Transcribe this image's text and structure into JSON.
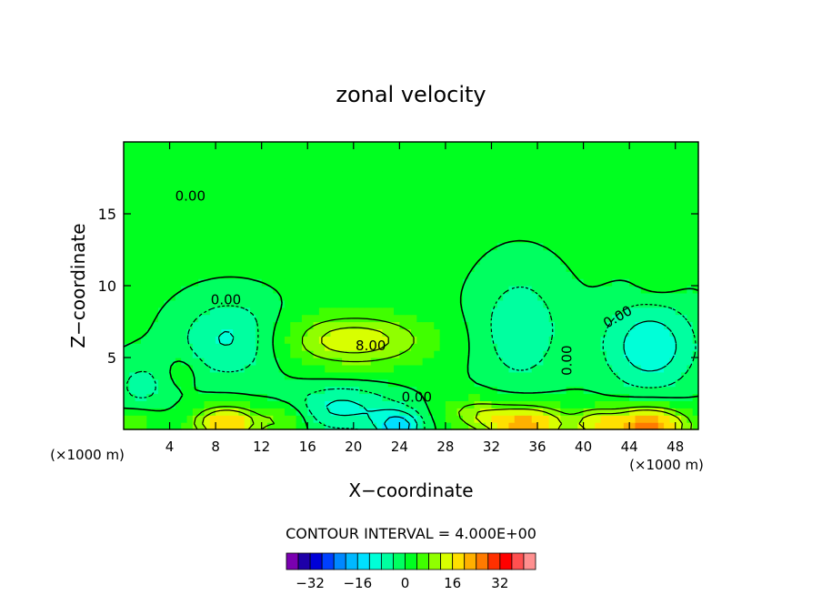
{
  "chart_data": {
    "type": "heatmap",
    "title": "zonal velocity",
    "xlabel": "X−coordinate",
    "ylabel": "Z−coordinate",
    "x_unit_left": "(×1000 m)",
    "x_unit_right": "(×1000 m)",
    "xlim": [
      0,
      50
    ],
    "ylim": [
      0,
      20
    ],
    "x_ticks": [
      4,
      8,
      12,
      16,
      20,
      24,
      28,
      32,
      36,
      40,
      44,
      48
    ],
    "x_tick_labels": [
      "4",
      "8",
      "12",
      "16",
      "20",
      "24",
      "28",
      "32",
      "36",
      "40",
      "44",
      "48"
    ],
    "y_ticks": [
      5,
      10,
      15
    ],
    "y_tick_labels": [
      "5",
      "10",
      "15"
    ],
    "contour_interval_text": "CONTOUR INTERVAL = 4.000E+00",
    "contour_labels": [
      {
        "text": "0.00",
        "x": 5.8,
        "y": 16.2
      },
      {
        "text": "0.00",
        "x": 8.9,
        "y": 9.0
      },
      {
        "text": "8.00",
        "x": 21.5,
        "y": 5.8
      },
      {
        "text": "0.00",
        "x": 25.5,
        "y": 2.2
      },
      {
        "text": "0.00",
        "x": 38.6,
        "y": 4.8,
        "rotate": -90
      },
      {
        "text": "0.00",
        "x": 43.0,
        "y": 7.8,
        "rotate": -30
      }
    ],
    "colorbar": {
      "levels": [
        -36,
        -32,
        -28,
        -24,
        -20,
        -16,
        -12,
        -8,
        -4,
        0,
        4,
        8,
        12,
        16,
        20,
        24,
        28,
        32,
        36
      ],
      "tick_values": [
        -32,
        -16,
        0,
        16,
        32
      ],
      "tick_labels": [
        "−32",
        "−16",
        "0",
        "16",
        "32"
      ],
      "colors": [
        "#7a00b0",
        "#1e00a8",
        "#0000d8",
        "#0040ff",
        "#0088ff",
        "#00b8ff",
        "#00e0ff",
        "#00ffd8",
        "#00ffa0",
        "#00ff60",
        "#00ff20",
        "#40ff00",
        "#90ff00",
        "#d8ff00",
        "#ffe000",
        "#ffb000",
        "#ff7a00",
        "#ff3000",
        "#ff0000",
        "#ff5050",
        "#ff9090"
      ]
    },
    "field": {
      "background_value": 1.0,
      "features": [
        {
          "x": 9.3,
          "y": 6.3,
          "amp": -10,
          "sx": 3.2,
          "sy": 2.0
        },
        {
          "x": 20.0,
          "y": 6.2,
          "amp": 14,
          "sx": 4.5,
          "sy": 1.3
        },
        {
          "x": 34.5,
          "y": 7.0,
          "amp": -8,
          "sx": 2.8,
          "sy": 3.0
        },
        {
          "x": 45.8,
          "y": 5.8,
          "amp": -12,
          "sx": 3.0,
          "sy": 2.3
        },
        {
          "x": 46.5,
          "y": 10.2,
          "amp": 3,
          "sx": 1.4,
          "sy": 0.8
        },
        {
          "x": 19.0,
          "y": 1.5,
          "amp": -10,
          "sx": 3.5,
          "sy": 1.2
        },
        {
          "x": 24.0,
          "y": 0.2,
          "amp": -14,
          "sx": 1.5,
          "sy": 0.8
        },
        {
          "x": 9.0,
          "y": 0.5,
          "amp": 20,
          "sx": 2.0,
          "sy": 0.8
        },
        {
          "x": 35.0,
          "y": 0.4,
          "amp": 22,
          "sx": 2.5,
          "sy": 0.9
        },
        {
          "x": 45.5,
          "y": 0.3,
          "amp": 25,
          "sx": 2.5,
          "sy": 0.9
        },
        {
          "x": 1.5,
          "y": 3.0,
          "amp": -6,
          "sx": 2.0,
          "sy": 1.5
        },
        {
          "x": 5.0,
          "y": 4.0,
          "amp": 4,
          "sx": 1.0,
          "sy": 0.8
        },
        {
          "x": 41.0,
          "y": 0.5,
          "amp": 10,
          "sx": 1.3,
          "sy": 0.7
        },
        {
          "x": 30.5,
          "y": 1.2,
          "amp": 8,
          "sx": 2.0,
          "sy": 0.8
        },
        {
          "x": 14.0,
          "y": 0.7,
          "amp": 8,
          "sx": 1.5,
          "sy": 0.8
        },
        {
          "x": 1.0,
          "y": 0.6,
          "amp": 6,
          "sx": 1.5,
          "sy": 0.6
        }
      ]
    },
    "grid": false
  }
}
